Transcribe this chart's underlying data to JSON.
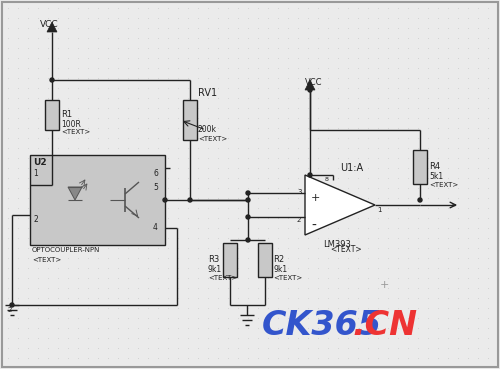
{
  "background_color": "#ebebeb",
  "grid_color": "#cccccc",
  "line_color": "#222222",
  "component_fill": "#c8c8c8",
  "vcc_label": "VCC",
  "vcc2_label": "VCC",
  "rv1_label": "RV1",
  "r1_label": "R1",
  "r1_val": "100R",
  "r1_text": "<TEXT>",
  "u2_label": "U2",
  "u2_sub": "OPTOCOUPLER-NPN",
  "u2_text": "<TEXT>",
  "rv1_val": "200k",
  "rv1_text": "<TEXT>",
  "u1_label": "U1:A",
  "lm393_label": "LM393",
  "r4_label": "R4",
  "r4_val": "5k1",
  "r4_text": "<TEXT>",
  "r3_label": "R3",
  "r3_val": "9k1",
  "r3_text": "<TEXT>",
  "r2_label": "R2",
  "r2_val": "9k1",
  "r2_text": "<TEXT>",
  "text_bottom": "<TEXT>",
  "title_color_ck": "#3355cc",
  "title_color_cn": "#ee3333",
  "figsize": [
    5.0,
    3.69
  ],
  "dpi": 100
}
